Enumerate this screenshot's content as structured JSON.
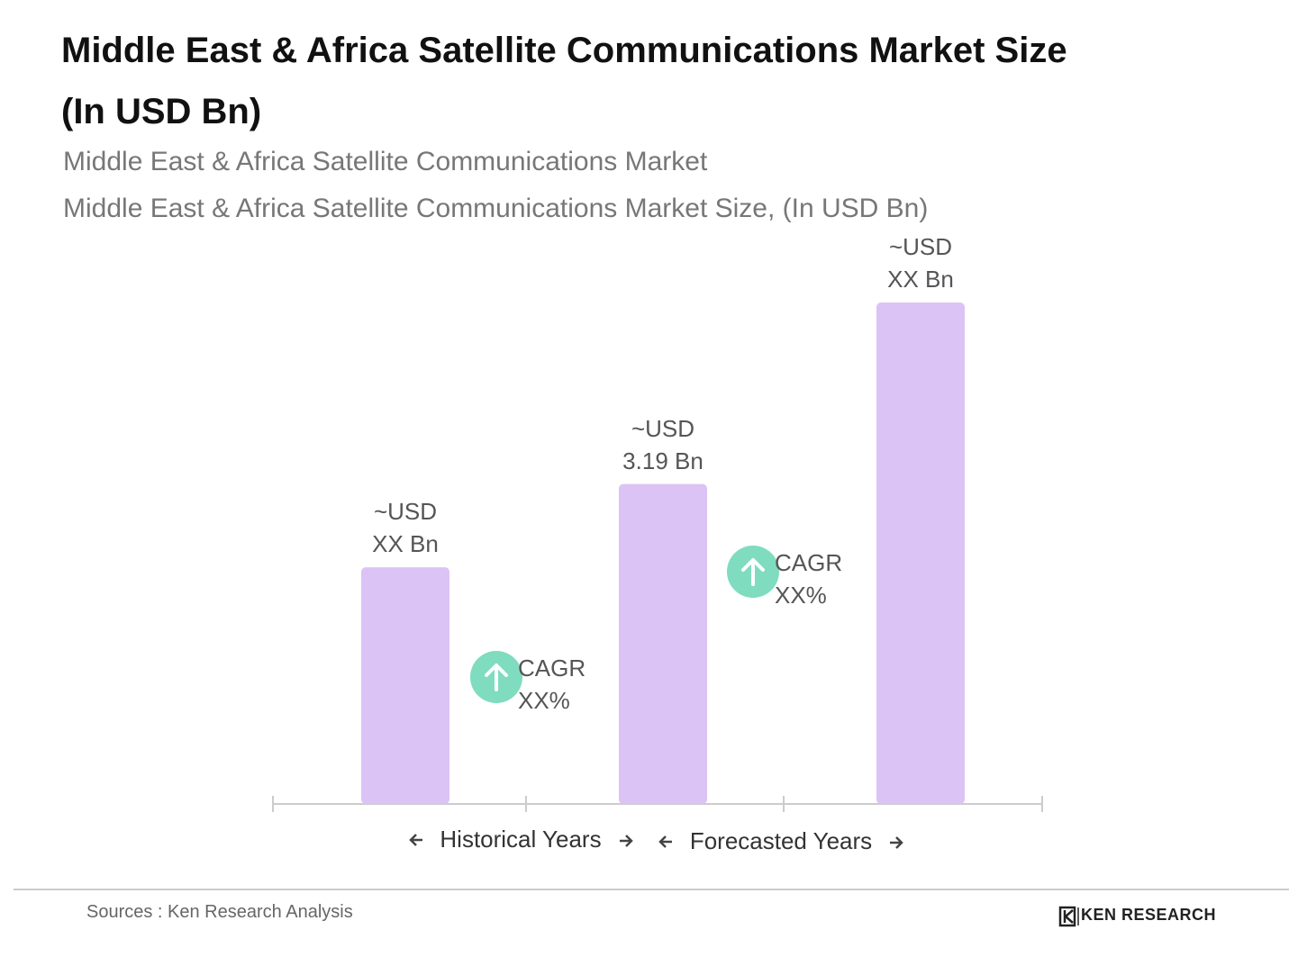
{
  "chart_data": {
    "type": "bar",
    "title": "Middle East & Africa Satellite Communications Market Size\n(In USD Bn)",
    "subtitles": [
      "Middle East & Africa Satellite Communications Market",
      "Middle East & Africa Satellite Communications Market Size, (In USD Bn)"
    ],
    "categories": [
      null,
      null,
      null
    ],
    "values": [
      2.36,
      3.19,
      5.0
    ],
    "value_labels": [
      "~USD\nXX Bn",
      "~USD\n3.19 Bn",
      "~USD\nXX Bn"
    ],
    "color": "#dcc3f5",
    "annotations": [
      "CAGR\nXX%",
      "CAGR\nXX%"
    ],
    "annotation_color": "#7fdcbf",
    "x_axis_labels": [
      "Historical Years",
      "Forecasted Years"
    ],
    "source": "Sources : Ken Research Analysis",
    "logo": "KEN RESEARCH"
  }
}
